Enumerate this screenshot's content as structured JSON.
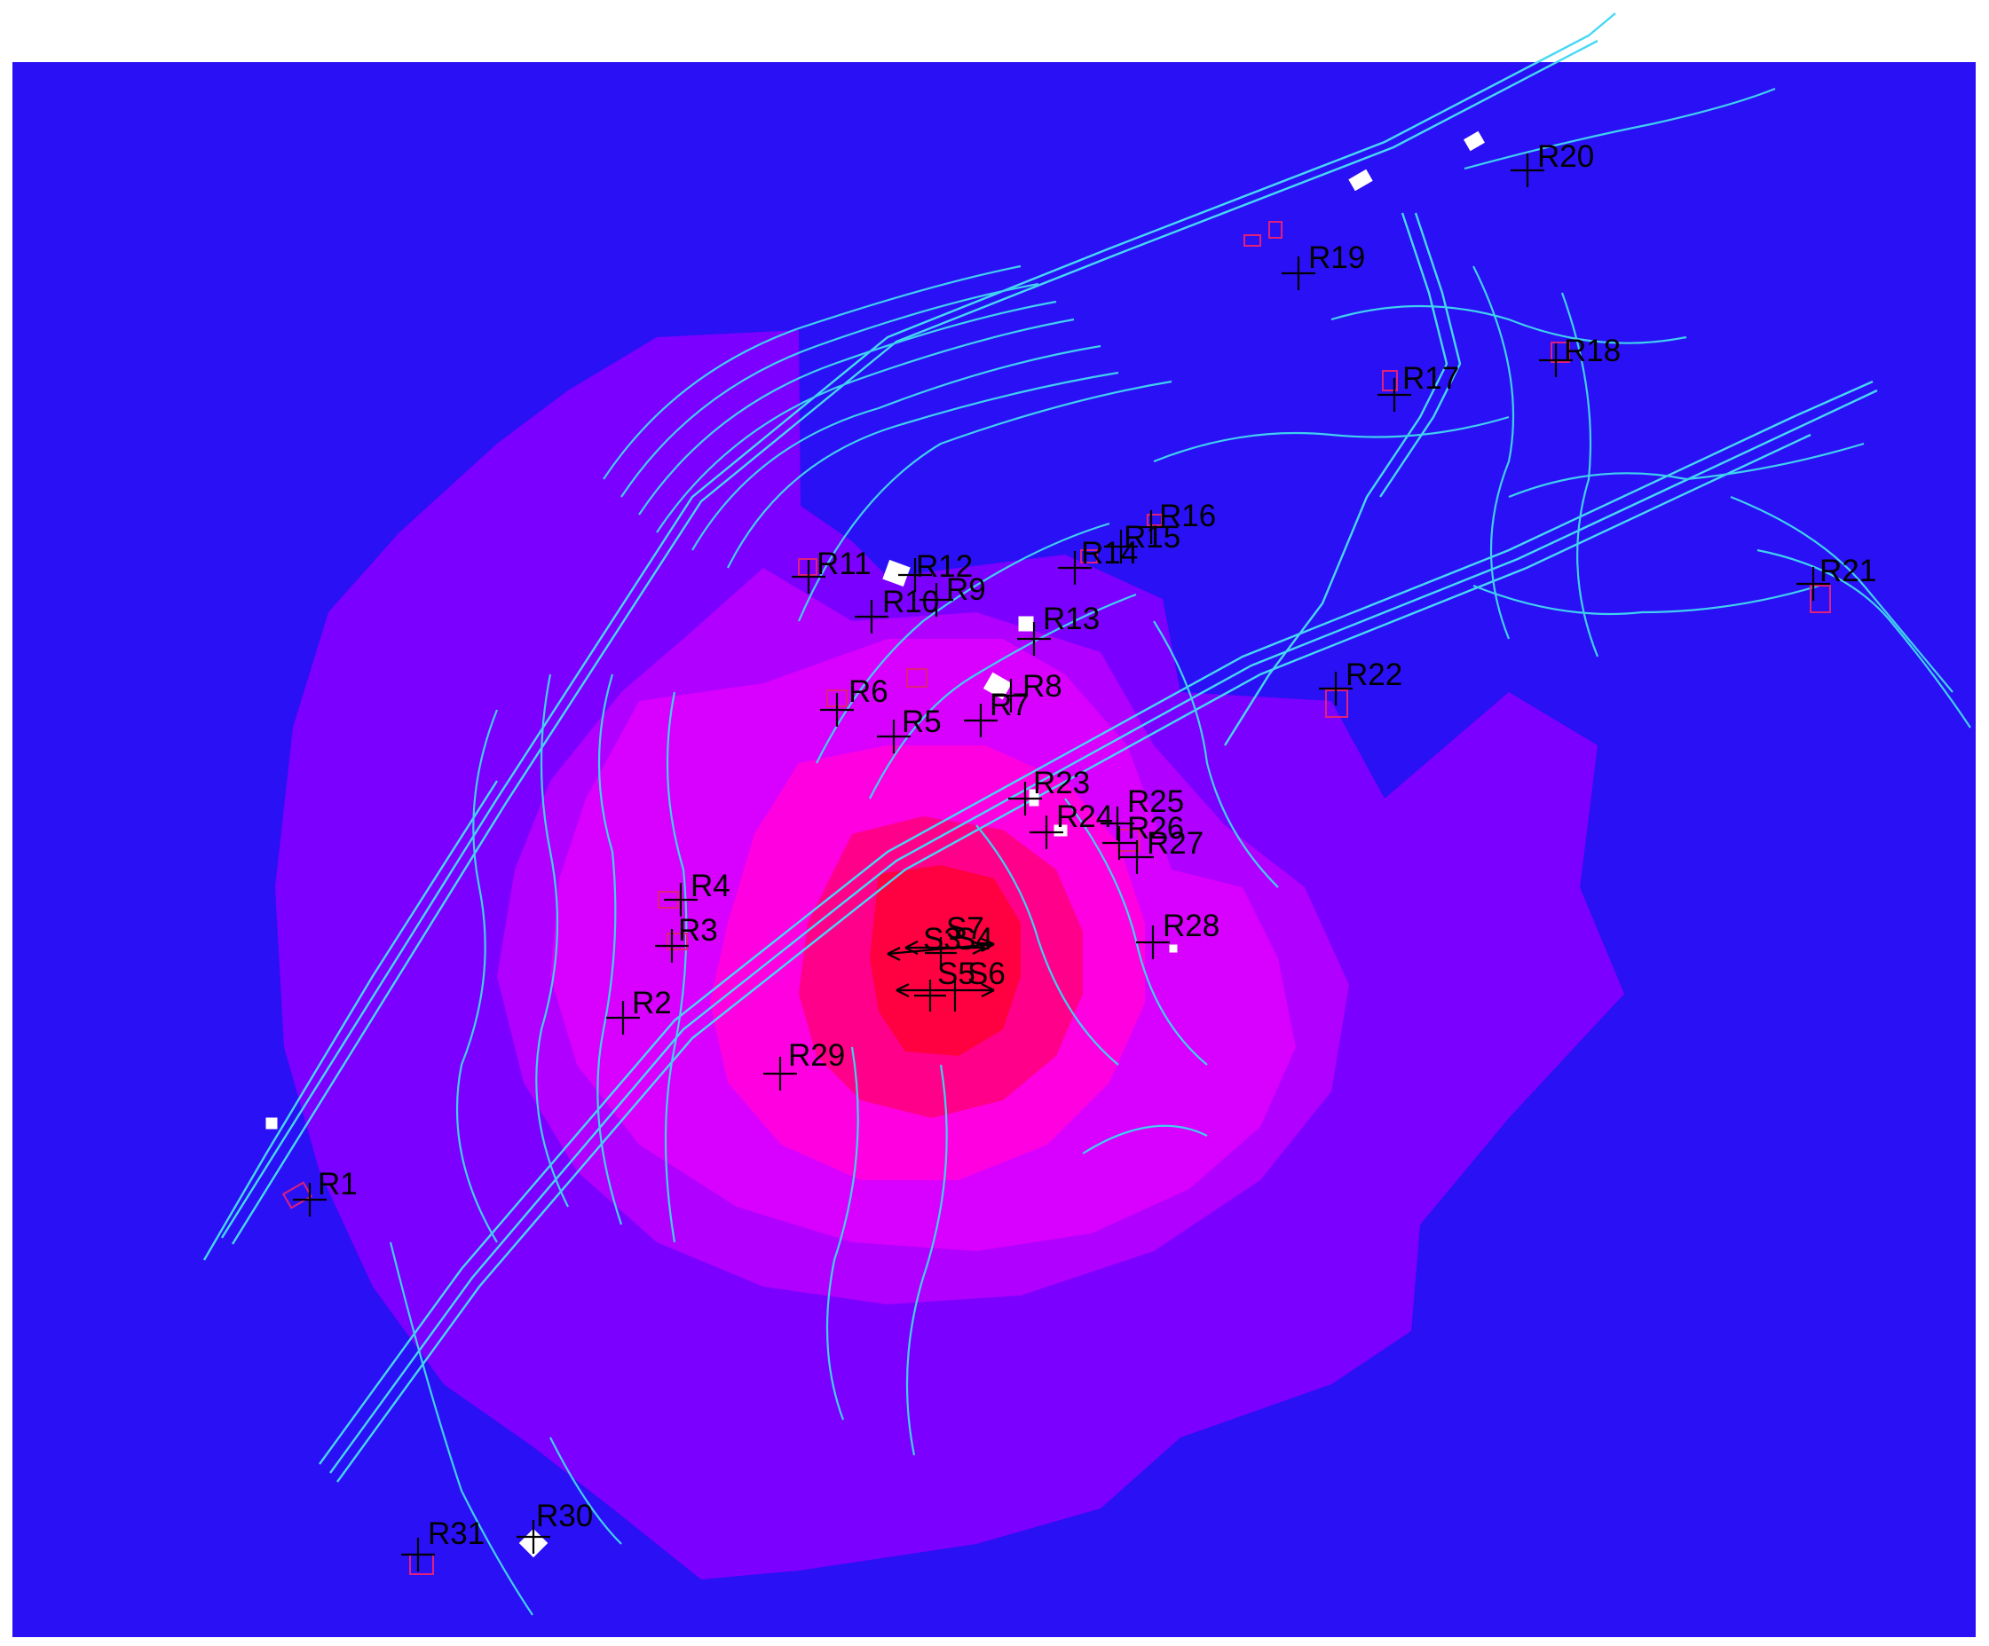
{
  "colors": {
    "background": "#2a10f5",
    "page": "#ffffff",
    "contour_levels": [
      "#7c00ff",
      "#b000ff",
      "#d800ff",
      "#ff00e0",
      "#ff008a",
      "#ff0040",
      "#ff0018"
    ],
    "terrain_lines": "#3fd0f0",
    "markers": "#000000",
    "buildings": "#e0207a",
    "building_fill": "#ffffff"
  },
  "receptors": [
    {
      "id": "r1",
      "label": "R1"
    },
    {
      "id": "r2",
      "label": "R2"
    },
    {
      "id": "r3",
      "label": "R3"
    },
    {
      "id": "r4",
      "label": "R4"
    },
    {
      "id": "r5",
      "label": "R5"
    },
    {
      "id": "r6",
      "label": "R6"
    },
    {
      "id": "r7",
      "label": "R7"
    },
    {
      "id": "r8",
      "label": "R8"
    },
    {
      "id": "r9",
      "label": "R9"
    },
    {
      "id": "r10",
      "label": "R10"
    },
    {
      "id": "r11",
      "label": "R11"
    },
    {
      "id": "r12",
      "label": "R12"
    },
    {
      "id": "r13",
      "label": "R13"
    },
    {
      "id": "r14",
      "label": "R14"
    },
    {
      "id": "r15",
      "label": "R15"
    },
    {
      "id": "r16",
      "label": "R16"
    },
    {
      "id": "r17",
      "label": "R17"
    },
    {
      "id": "r18",
      "label": "R18"
    },
    {
      "id": "r19",
      "label": "R19"
    },
    {
      "id": "r20",
      "label": "R20"
    },
    {
      "id": "r21",
      "label": "R21"
    },
    {
      "id": "r22",
      "label": "R22"
    },
    {
      "id": "r23",
      "label": "R23"
    },
    {
      "id": "r24",
      "label": "R24"
    },
    {
      "id": "r25",
      "label": "R25"
    },
    {
      "id": "r26",
      "label": "R26"
    },
    {
      "id": "r27",
      "label": "R27"
    },
    {
      "id": "r28",
      "label": "R28"
    },
    {
      "id": "r29",
      "label": "R29"
    },
    {
      "id": "r30",
      "label": "R30"
    },
    {
      "id": "r31",
      "label": "R31"
    }
  ],
  "sources": [
    {
      "id": "s3",
      "label": "S3"
    },
    {
      "id": "s4",
      "label": "S4"
    },
    {
      "id": "s5",
      "label": "S5"
    },
    {
      "id": "s6",
      "label": "S6"
    },
    {
      "id": "s7",
      "label": "S7"
    }
  ]
}
